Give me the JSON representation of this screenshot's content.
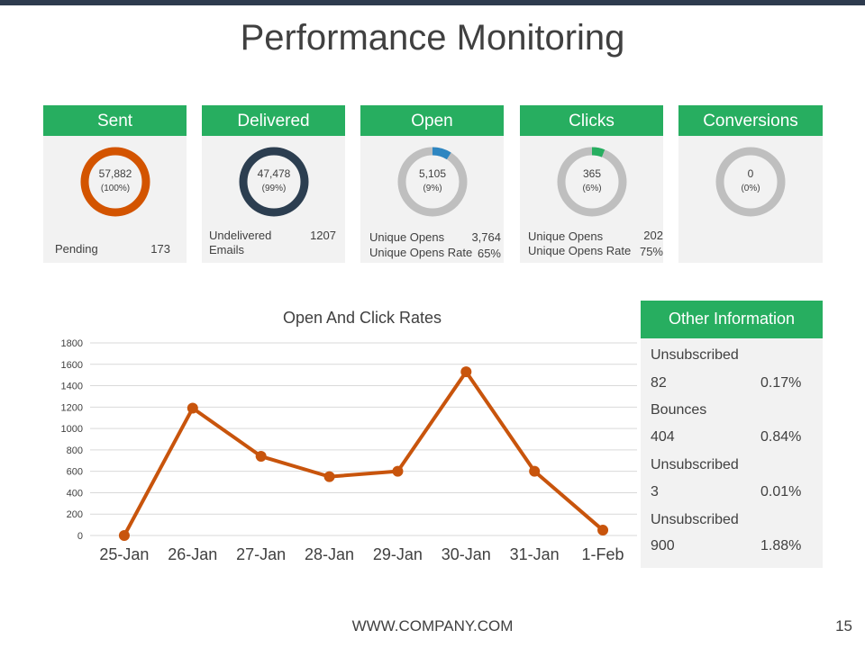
{
  "page": {
    "title": "Performance Monitoring",
    "footer_url": "WWW.COMPANY.COM",
    "page_number": "15"
  },
  "colors": {
    "header_green": "#27ae60",
    "topbar": "#2e3b4e",
    "sent_ring": "#d35400",
    "delivered_ring": "#2c3e50",
    "open_accent": "#2e86c1",
    "clicks_accent": "#27ae60",
    "ring_gray": "#bfbfbf",
    "line": "#c8540c"
  },
  "cards": [
    {
      "title": "Sent",
      "value": "57,882",
      "percent": "(100%)",
      "fill_fraction": 1.0,
      "foot": [
        {
          "label": "Pending",
          "value": "173"
        }
      ]
    },
    {
      "title": "Delivered",
      "value": "47,478",
      "percent": "(99%)",
      "fill_fraction": 1.0,
      "foot": [
        {
          "label": "Undelivered",
          "value": "1207"
        },
        {
          "label": "Emails",
          "value": ""
        }
      ]
    },
    {
      "title": "Open",
      "value": "5,105",
      "percent": "(9%)",
      "fill_fraction": 0.09,
      "foot": [
        {
          "label": "Unique Opens",
          "value": "3,764"
        },
        {
          "label": "Unique Opens Rate",
          "value": "65%"
        }
      ]
    },
    {
      "title": "Clicks",
      "value": "365",
      "percent": "(6%)",
      "fill_fraction": 0.06,
      "foot": [
        {
          "label": "Unique Opens",
          "value": "202"
        },
        {
          "label": "Unique Opens Rate",
          "value": "75%"
        }
      ]
    },
    {
      "title": "Conversions",
      "value": "0",
      "percent": "(0%)",
      "fill_fraction": 0.0,
      "foot": []
    }
  ],
  "other_info": {
    "title": "Other Information",
    "rows": [
      {
        "label": "Unsubscribed",
        "count": "82",
        "percent": "0.17%"
      },
      {
        "label": "Bounces",
        "count": "404",
        "percent": "0.84%"
      },
      {
        "label": "Unsubscribed",
        "count": "3",
        "percent": "0.01%"
      },
      {
        "label": "Unsubscribed",
        "count": "900",
        "percent": "1.88%"
      }
    ]
  },
  "chart_data": {
    "type": "line",
    "title": "Open And Click Rates",
    "categories": [
      "25-Jan",
      "26-Jan",
      "27-Jan",
      "28-Jan",
      "29-Jan",
      "30-Jan",
      "31-Jan",
      "1-Feb"
    ],
    "series": [
      {
        "values": [
          0,
          1190,
          740,
          550,
          600,
          1530,
          600,
          50
        ]
      }
    ],
    "yticks": [
      "0",
      "200",
      "400",
      "600",
      "800",
      "1000",
      "1200",
      "1400",
      "1600",
      "1800"
    ],
    "ylim": [
      0,
      1800
    ],
    "grid": true,
    "legend": "none"
  }
}
